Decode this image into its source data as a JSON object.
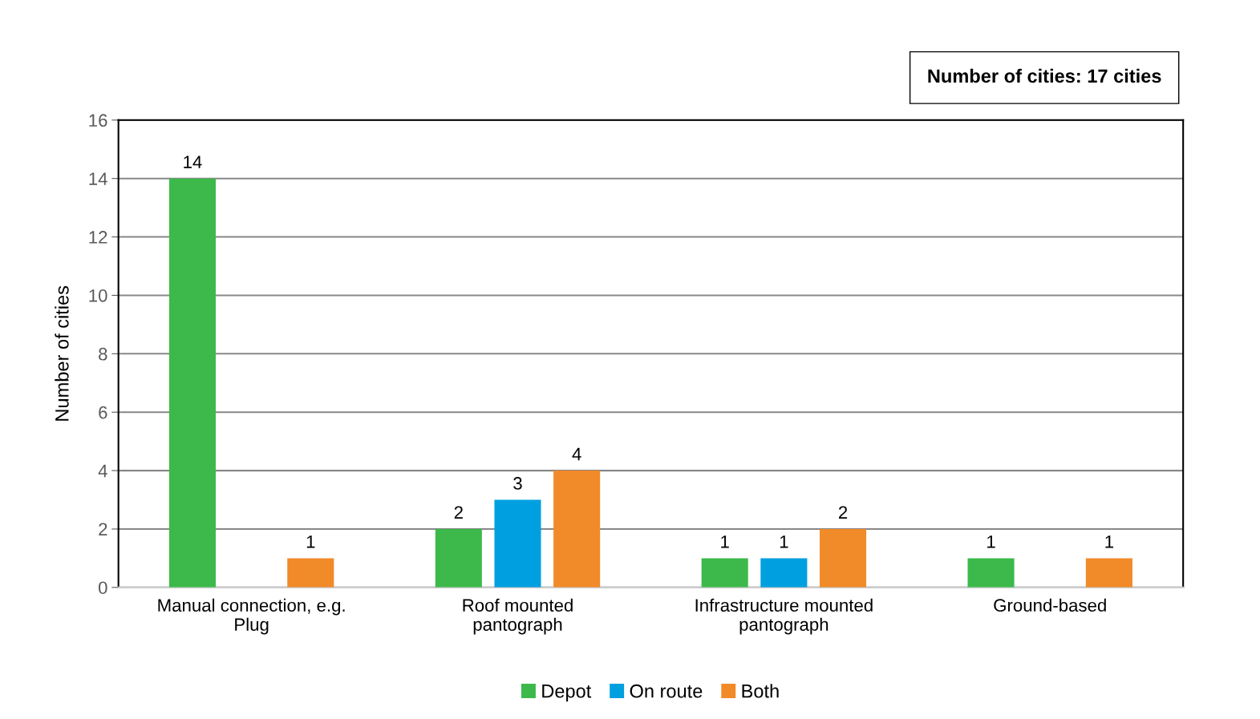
{
  "chart_data": {
    "type": "bar",
    "ylabel": "Number of cities",
    "categories": [
      "Manual connection, e.g.\nPlug",
      "Roof mounted\npantograph",
      "Infrastructure mounted\npantograph",
      "Ground-based"
    ],
    "series": [
      {
        "name": "Depot",
        "color": "#3cb94a",
        "values": [
          14,
          2,
          1,
          1
        ]
      },
      {
        "name": "On route",
        "color": "#00a0e0",
        "values": [
          null,
          3,
          1,
          null
        ]
      },
      {
        "name": "Both",
        "color": "#f18a28",
        "values": [
          1,
          4,
          2,
          1
        ]
      }
    ],
    "ylim": [
      0,
      16
    ],
    "yticks": [
      0,
      2,
      4,
      6,
      8,
      10,
      12,
      14,
      16
    ],
    "grid": "y",
    "legend": "bottom",
    "data_labels": true,
    "annotations": [
      "Number of cities: 17 cities"
    ]
  }
}
